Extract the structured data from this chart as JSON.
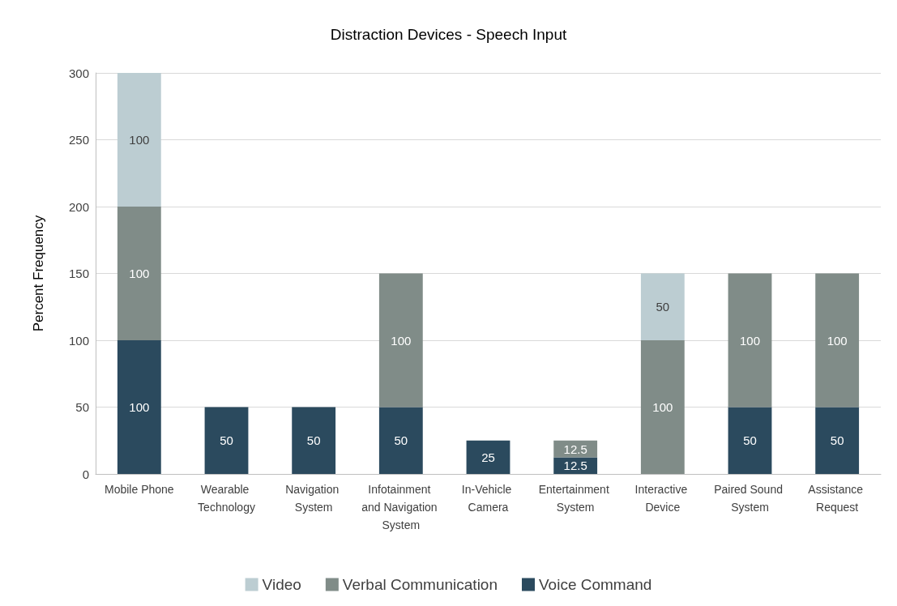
{
  "chart_data": {
    "type": "bar",
    "title": "Distraction Devices - Speech Input",
    "ylabel": "Percent Frequency",
    "categories": [
      "Mobile Phone",
      "Wearable Technology",
      "Navigation System",
      "Infotainment and Navigation System",
      "In-Vehicle Camera",
      "Entertainment System",
      "Interactive Device",
      "Paired Sound System",
      "Assistance Request"
    ],
    "series": [
      {
        "name": "Voice Command",
        "color": "#2b4a5e",
        "values": [
          100,
          50,
          50,
          50,
          25,
          12.5,
          null,
          50,
          50
        ]
      },
      {
        "name": "Verbal Communication",
        "color": "#808c88",
        "values": [
          100,
          null,
          null,
          100,
          null,
          12.5,
          100,
          100,
          100
        ]
      },
      {
        "name": "Video",
        "color": "#bccdd2",
        "values": [
          100,
          null,
          null,
          null,
          null,
          null,
          50,
          null,
          null
        ]
      }
    ],
    "stacked": true,
    "ylim": [
      0,
      300
    ],
    "yticks": [
      0,
      50,
      100,
      150,
      200,
      250,
      300
    ],
    "grid": "y",
    "legend": "bottom",
    "data_labels": true
  }
}
